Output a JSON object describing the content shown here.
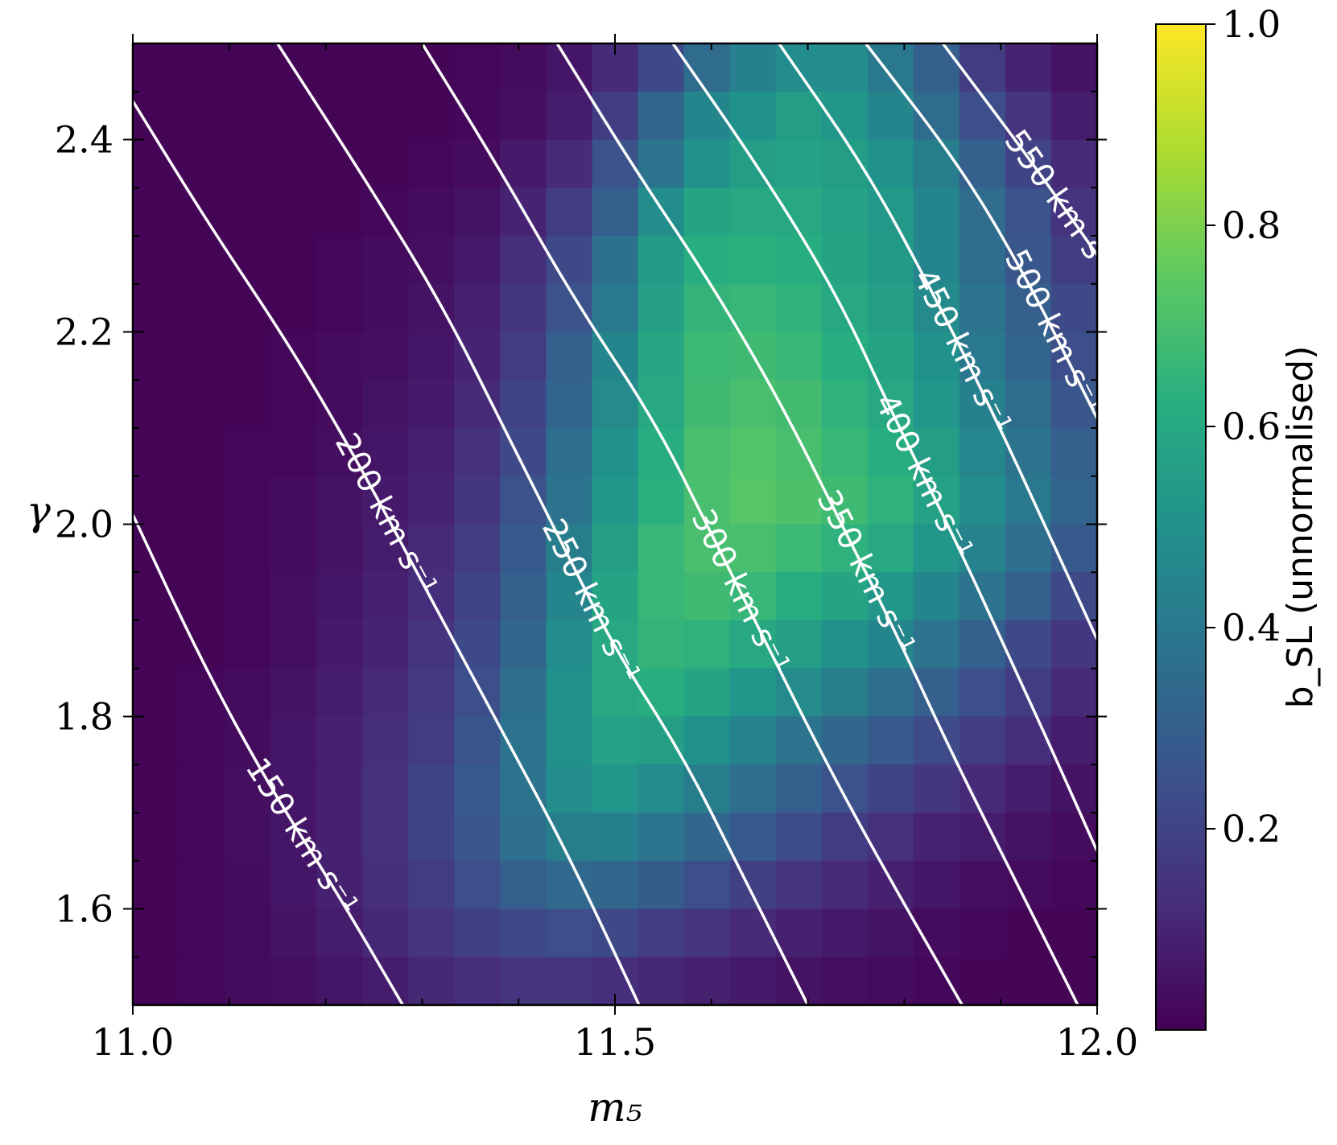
{
  "chart_data": {
    "type": "heatmap",
    "title": "",
    "xlabel": "m₅",
    "ylabel": "γ",
    "xlim": [
      11.0,
      12.0
    ],
    "ylim": [
      1.5,
      2.5
    ],
    "x_ticks": [
      {
        "value": 11.0,
        "label": "11.0"
      },
      {
        "value": 11.5,
        "label": "11.5"
      },
      {
        "value": 12.0,
        "label": "12.0"
      }
    ],
    "y_ticks": [
      {
        "value": 1.6,
        "label": "1.6"
      },
      {
        "value": 1.8,
        "label": "1.8"
      },
      {
        "value": 2.0,
        "label": "2.0"
      },
      {
        "value": 2.2,
        "label": "2.2"
      },
      {
        "value": 2.4,
        "label": "2.4"
      }
    ],
    "colormap": "viridis",
    "colorbar": {
      "label": "b_SL (unnormalised)",
      "range": [
        0.0,
        1.0
      ],
      "ticks": [
        {
          "value": 0.2,
          "label": "0.2"
        },
        {
          "value": 0.4,
          "label": "0.4"
        },
        {
          "value": 0.6,
          "label": "0.6"
        },
        {
          "value": 0.8,
          "label": "0.8"
        },
        {
          "value": 1.0,
          "label": "1.0"
        }
      ]
    },
    "contour_color": "#ffffff",
    "contours": [
      {
        "label": "150 km s⁻¹",
        "points": [
          [
            11.0,
            2.01
          ],
          [
            11.07,
            1.86
          ],
          [
            11.14,
            1.73
          ],
          [
            11.21,
            1.62
          ],
          [
            11.28,
            1.5
          ]
        ]
      },
      {
        "label": "200 km s⁻¹",
        "points": [
          [
            11.0,
            2.44
          ],
          [
            11.08,
            2.31
          ],
          [
            11.16,
            2.19
          ],
          [
            11.225,
            2.08
          ],
          [
            11.3,
            1.94
          ],
          [
            11.38,
            1.79
          ],
          [
            11.45,
            1.66
          ],
          [
            11.525,
            1.5
          ]
        ]
      },
      {
        "label": "250 km s⁻¹",
        "points": [
          [
            11.15,
            2.5
          ],
          [
            11.24,
            2.36
          ],
          [
            11.32,
            2.23
          ],
          [
            11.39,
            2.09
          ],
          [
            11.45,
            1.97
          ],
          [
            11.5,
            1.87
          ],
          [
            11.57,
            1.76
          ],
          [
            11.63,
            1.64
          ],
          [
            11.7,
            1.5
          ]
        ]
      },
      {
        "label": "300 km s⁻¹",
        "points": [
          [
            11.3,
            2.5
          ],
          [
            11.38,
            2.37
          ],
          [
            11.46,
            2.23
          ],
          [
            11.54,
            2.11
          ],
          [
            11.6,
            1.99
          ],
          [
            11.66,
            1.87
          ],
          [
            11.72,
            1.75
          ],
          [
            11.78,
            1.64
          ],
          [
            11.86,
            1.5
          ]
        ]
      },
      {
        "label": "350 km s⁻¹",
        "points": [
          [
            11.44,
            2.5
          ],
          [
            11.52,
            2.37
          ],
          [
            11.6,
            2.25
          ],
          [
            11.67,
            2.13
          ],
          [
            11.73,
            2.01
          ],
          [
            11.79,
            1.89
          ],
          [
            11.85,
            1.76
          ],
          [
            11.92,
            1.62
          ],
          [
            11.98,
            1.5
          ]
        ]
      },
      {
        "label": "400 km s⁻¹",
        "points": [
          [
            11.56,
            2.5
          ],
          [
            11.65,
            2.37
          ],
          [
            11.73,
            2.24
          ],
          [
            11.79,
            2.11
          ],
          [
            11.85,
            1.99
          ],
          [
            11.91,
            1.86
          ],
          [
            11.96,
            1.75
          ],
          [
            12.0,
            1.66
          ]
        ]
      },
      {
        "label": "450 km s⁻¹",
        "points": [
          [
            11.67,
            2.5
          ],
          [
            11.76,
            2.37
          ],
          [
            11.83,
            2.24
          ],
          [
            11.89,
            2.12
          ],
          [
            11.95,
            1.99
          ],
          [
            12.0,
            1.88
          ]
        ]
      },
      {
        "label": "500 km s⁻¹",
        "points": [
          [
            11.76,
            2.5
          ],
          [
            11.86,
            2.37
          ],
          [
            11.93,
            2.25
          ],
          [
            11.98,
            2.15
          ],
          [
            12.0,
            2.11
          ]
        ]
      },
      {
        "label": "550 km s⁻¹",
        "points": [
          [
            11.84,
            2.5
          ],
          [
            11.93,
            2.38
          ],
          [
            12.0,
            2.28
          ]
        ]
      }
    ],
    "grid_shape": [
      20,
      21
    ],
    "values": [
      [
        0.01,
        0.01,
        0.01,
        0.01,
        0.01,
        0.01,
        0.01,
        0.02,
        0.03,
        0.06,
        0.12,
        0.22,
        0.35,
        0.43,
        0.48,
        0.48,
        0.4,
        0.3,
        0.18,
        0.1,
        0.05
      ],
      [
        0.01,
        0.01,
        0.01,
        0.01,
        0.01,
        0.01,
        0.01,
        0.02,
        0.04,
        0.08,
        0.18,
        0.32,
        0.45,
        0.5,
        0.55,
        0.52,
        0.45,
        0.35,
        0.24,
        0.15,
        0.08
      ],
      [
        0.01,
        0.01,
        0.01,
        0.01,
        0.01,
        0.01,
        0.02,
        0.03,
        0.07,
        0.12,
        0.25,
        0.38,
        0.5,
        0.55,
        0.57,
        0.55,
        0.5,
        0.42,
        0.3,
        0.2,
        0.12
      ],
      [
        0.01,
        0.01,
        0.01,
        0.01,
        0.01,
        0.02,
        0.03,
        0.05,
        0.1,
        0.18,
        0.3,
        0.48,
        0.58,
        0.6,
        0.6,
        0.57,
        0.53,
        0.45,
        0.35,
        0.25,
        0.15
      ],
      [
        0.01,
        0.01,
        0.01,
        0.01,
        0.02,
        0.03,
        0.04,
        0.07,
        0.13,
        0.22,
        0.37,
        0.54,
        0.62,
        0.63,
        0.62,
        0.58,
        0.54,
        0.45,
        0.35,
        0.27,
        0.18
      ],
      [
        0.01,
        0.01,
        0.01,
        0.01,
        0.02,
        0.03,
        0.05,
        0.09,
        0.16,
        0.25,
        0.4,
        0.56,
        0.65,
        0.66,
        0.64,
        0.6,
        0.56,
        0.47,
        0.38,
        0.3,
        0.22
      ],
      [
        0.01,
        0.01,
        0.01,
        0.02,
        0.03,
        0.04,
        0.06,
        0.1,
        0.18,
        0.3,
        0.45,
        0.59,
        0.67,
        0.68,
        0.66,
        0.62,
        0.58,
        0.5,
        0.4,
        0.32,
        0.24
      ],
      [
        0.01,
        0.01,
        0.01,
        0.02,
        0.03,
        0.05,
        0.07,
        0.12,
        0.2,
        0.32,
        0.47,
        0.6,
        0.68,
        0.7,
        0.69,
        0.64,
        0.6,
        0.52,
        0.43,
        0.35,
        0.27
      ],
      [
        0.01,
        0.01,
        0.02,
        0.02,
        0.04,
        0.06,
        0.09,
        0.14,
        0.22,
        0.36,
        0.5,
        0.62,
        0.7,
        0.72,
        0.7,
        0.66,
        0.62,
        0.55,
        0.46,
        0.38,
        0.3
      ],
      [
        0.01,
        0.01,
        0.02,
        0.03,
        0.05,
        0.07,
        0.1,
        0.16,
        0.25,
        0.38,
        0.52,
        0.63,
        0.7,
        0.73,
        0.71,
        0.68,
        0.64,
        0.57,
        0.48,
        0.4,
        0.32
      ],
      [
        0.01,
        0.01,
        0.02,
        0.03,
        0.05,
        0.08,
        0.12,
        0.18,
        0.28,
        0.42,
        0.56,
        0.66,
        0.7,
        0.7,
        0.67,
        0.64,
        0.6,
        0.52,
        0.44,
        0.36,
        0.28
      ],
      [
        0.01,
        0.01,
        0.02,
        0.04,
        0.06,
        0.09,
        0.13,
        0.2,
        0.3,
        0.45,
        0.58,
        0.66,
        0.68,
        0.66,
        0.62,
        0.58,
        0.52,
        0.45,
        0.38,
        0.3,
        0.22
      ],
      [
        0.01,
        0.01,
        0.02,
        0.04,
        0.07,
        0.1,
        0.15,
        0.22,
        0.33,
        0.48,
        0.6,
        0.65,
        0.64,
        0.6,
        0.55,
        0.5,
        0.45,
        0.38,
        0.3,
        0.22,
        0.16
      ],
      [
        0.01,
        0.02,
        0.03,
        0.05,
        0.08,
        0.12,
        0.17,
        0.24,
        0.36,
        0.5,
        0.6,
        0.62,
        0.58,
        0.52,
        0.47,
        0.42,
        0.36,
        0.3,
        0.24,
        0.18,
        0.12
      ],
      [
        0.01,
        0.02,
        0.03,
        0.06,
        0.09,
        0.13,
        0.18,
        0.26,
        0.38,
        0.5,
        0.57,
        0.56,
        0.5,
        0.44,
        0.38,
        0.33,
        0.28,
        0.23,
        0.18,
        0.13,
        0.08
      ],
      [
        0.01,
        0.02,
        0.04,
        0.06,
        0.09,
        0.14,
        0.2,
        0.28,
        0.38,
        0.48,
        0.52,
        0.48,
        0.42,
        0.36,
        0.3,
        0.25,
        0.2,
        0.16,
        0.12,
        0.08,
        0.05
      ],
      [
        0.01,
        0.02,
        0.04,
        0.06,
        0.09,
        0.14,
        0.2,
        0.27,
        0.36,
        0.42,
        0.43,
        0.39,
        0.33,
        0.28,
        0.23,
        0.18,
        0.14,
        0.1,
        0.08,
        0.05,
        0.03
      ],
      [
        0.01,
        0.02,
        0.03,
        0.06,
        0.09,
        0.13,
        0.18,
        0.24,
        0.3,
        0.34,
        0.33,
        0.29,
        0.24,
        0.19,
        0.15,
        0.12,
        0.09,
        0.06,
        0.04,
        0.03,
        0.02
      ],
      [
        0.01,
        0.02,
        0.03,
        0.05,
        0.08,
        0.11,
        0.15,
        0.19,
        0.22,
        0.24,
        0.22,
        0.18,
        0.15,
        0.12,
        0.09,
        0.07,
        0.05,
        0.03,
        0.02,
        0.01,
        0.01
      ],
      [
        0.01,
        0.02,
        0.03,
        0.04,
        0.06,
        0.08,
        0.11,
        0.13,
        0.15,
        0.15,
        0.13,
        0.11,
        0.09,
        0.07,
        0.05,
        0.04,
        0.03,
        0.02,
        0.01,
        0.01,
        0.01
      ]
    ]
  }
}
